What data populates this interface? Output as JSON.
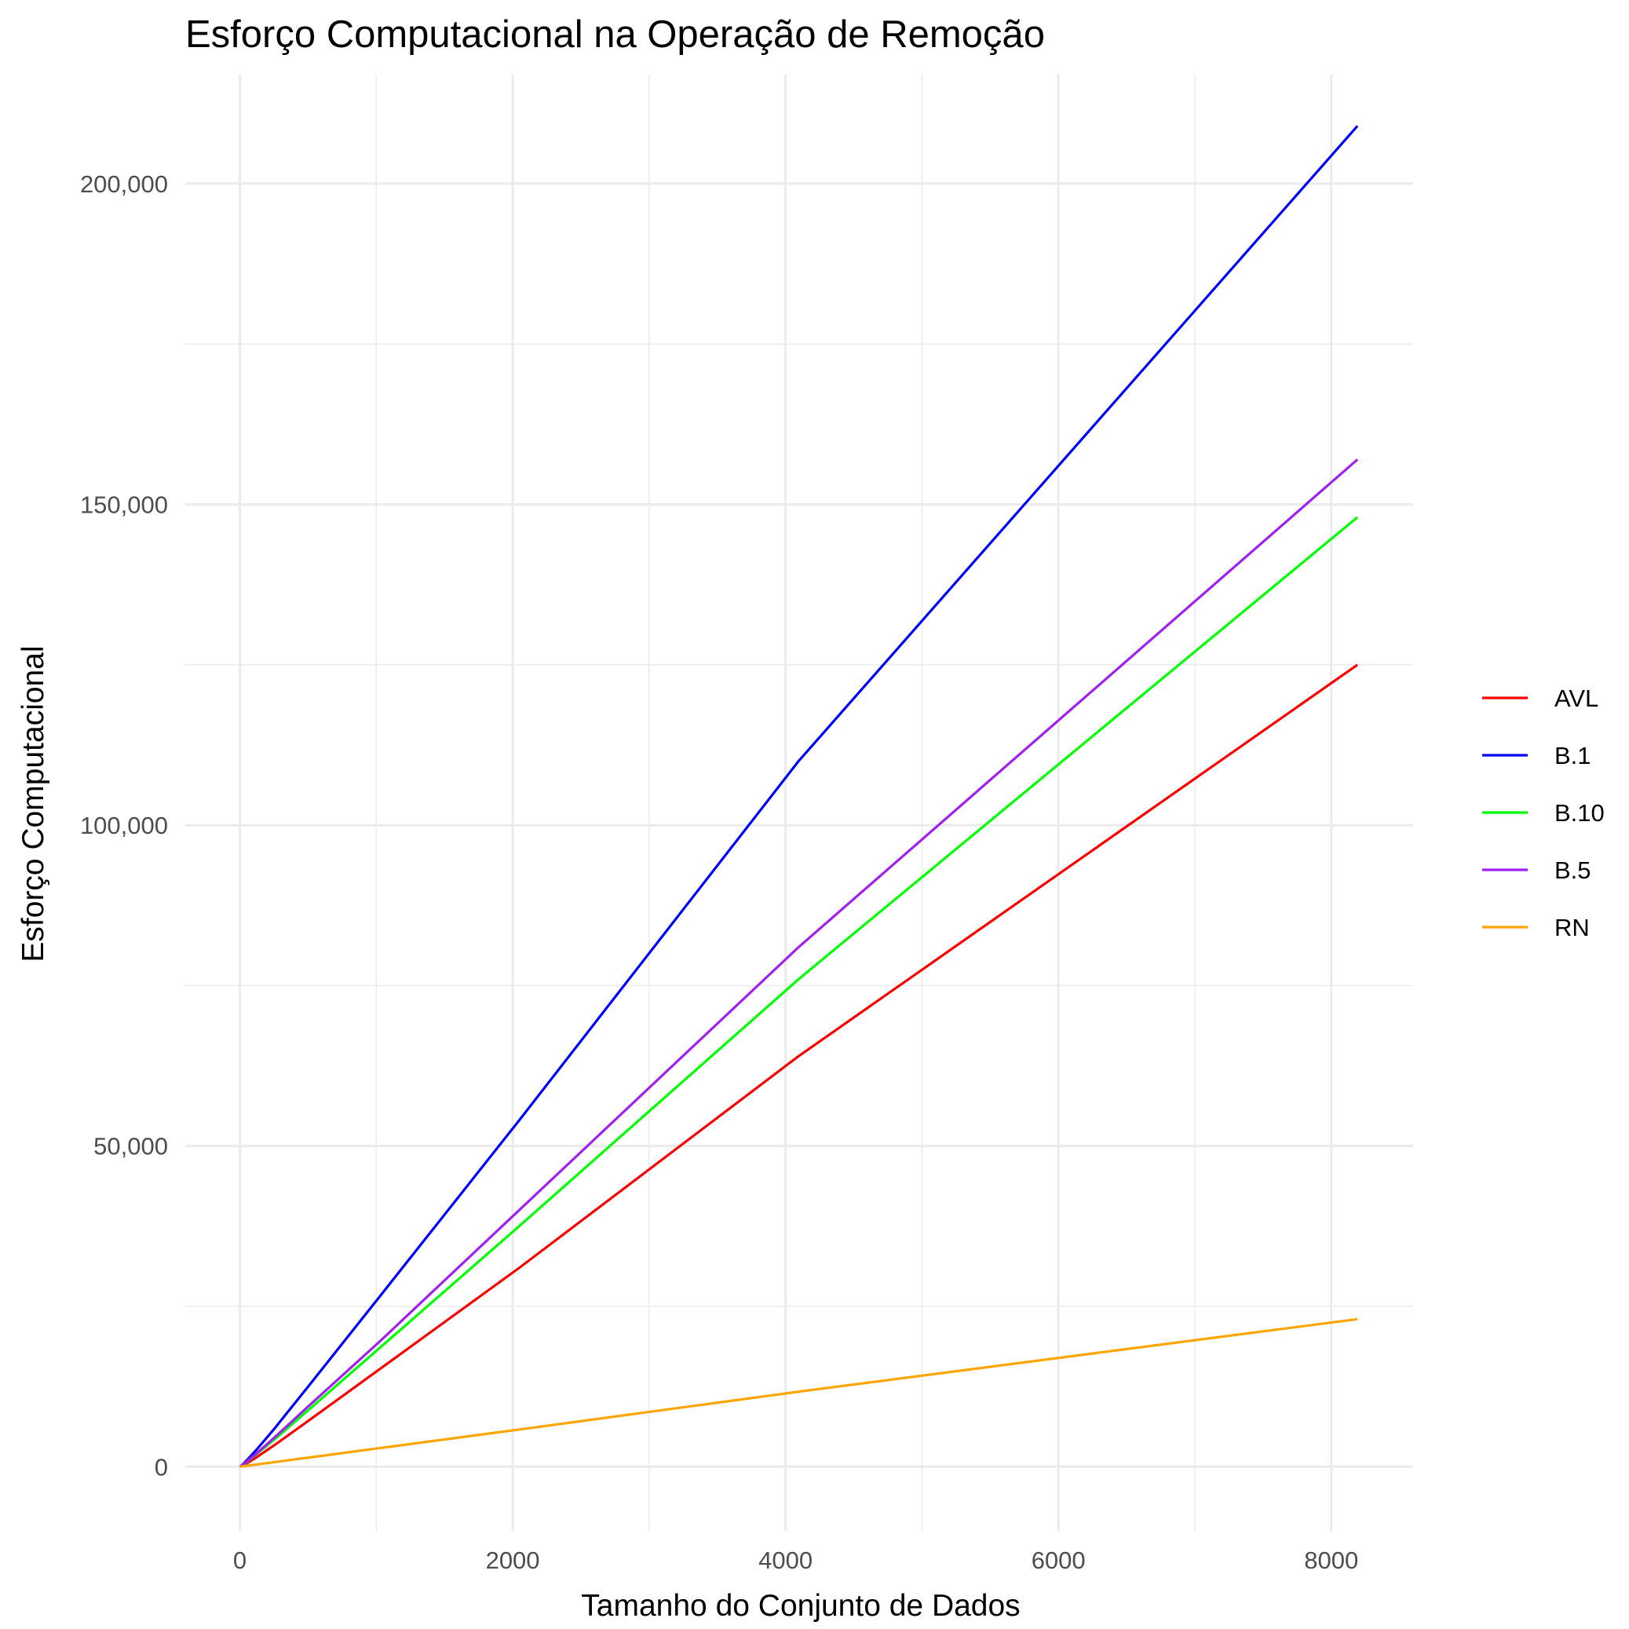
{
  "chart_data": {
    "type": "line",
    "title": "Esforço Computacional na Operação de Remoção",
    "xlabel": "Tamanho do Conjunto de Dados",
    "ylabel": "Esforço Computacional",
    "xlim": [
      -400,
      8600
    ],
    "ylim": [
      -10000,
      217000
    ],
    "x_ticks": [
      0,
      2000,
      4000,
      6000,
      8000
    ],
    "x_tick_labels": [
      "0",
      "2000",
      "4000",
      "6000",
      "8000"
    ],
    "x_minor_ticks": [
      1000,
      3000,
      5000,
      7000
    ],
    "y_ticks": [
      0,
      50000,
      100000,
      150000,
      200000
    ],
    "y_tick_labels": [
      "0",
      "50,000",
      "100,000",
      "150,000",
      "200,000"
    ],
    "y_minor_ticks": [
      25000,
      75000,
      125000,
      175000
    ],
    "grid": true,
    "legend_position": "right",
    "x": [
      0,
      8,
      16,
      32,
      64,
      128,
      256,
      512,
      1024,
      2048,
      4096,
      8192
    ],
    "series": [
      {
        "name": "AVL",
        "color": "#ff0000",
        "values": [
          0,
          60,
          140,
          320,
          700,
          1550,
          3400,
          7300,
          15200,
          31000,
          64000,
          125000
        ]
      },
      {
        "name": "B.1",
        "color": "#0000ff",
        "values": [
          0,
          110,
          260,
          590,
          1300,
          2800,
          6000,
          12800,
          26500,
          54000,
          110000,
          209000
        ]
      },
      {
        "name": "B.10",
        "color": "#00ff00",
        "values": [
          0,
          80,
          190,
          440,
          960,
          2050,
          4300,
          9000,
          18500,
          37500,
          76000,
          148000
        ]
      },
      {
        "name": "B.5",
        "color": "#a020f0",
        "values": [
          0,
          85,
          200,
          470,
          1020,
          2180,
          4600,
          9600,
          19500,
          40000,
          81000,
          157000
        ]
      },
      {
        "name": "RN",
        "color": "#ffa500",
        "values": [
          0,
          22,
          45,
          90,
          180,
          360,
          720,
          1440,
          2900,
          5800,
          11700,
          23000
        ]
      }
    ]
  }
}
